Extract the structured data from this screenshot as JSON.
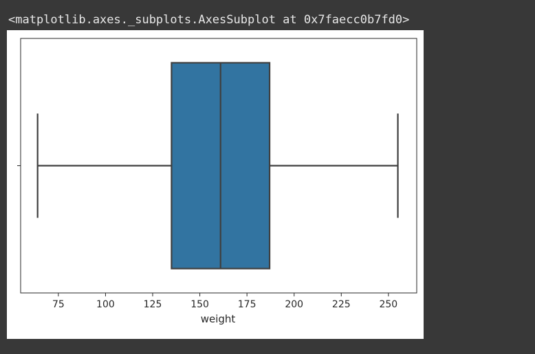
{
  "output": {
    "repr_text": "<matplotlib.axes._subplots.AxesSubplot at 0x7faecc0b7fd0>"
  },
  "chart_data": {
    "type": "box",
    "orientation": "horizontal",
    "xlabel": "weight",
    "ylabel": "",
    "xlim": [
      55,
      265
    ],
    "x_ticks": [
      75,
      100,
      125,
      150,
      175,
      200,
      225,
      250
    ],
    "x_tick_labels": [
      "75",
      "100",
      "125",
      "150",
      "175",
      "200",
      "225",
      "250"
    ],
    "series": [
      {
        "min": 64,
        "q1": 135,
        "median": 161,
        "q3": 187,
        "max": 255
      }
    ],
    "colors": {
      "box_fill": "#3274a1",
      "line": "#3f3f3f",
      "frame": "#262626"
    },
    "grid": false
  }
}
